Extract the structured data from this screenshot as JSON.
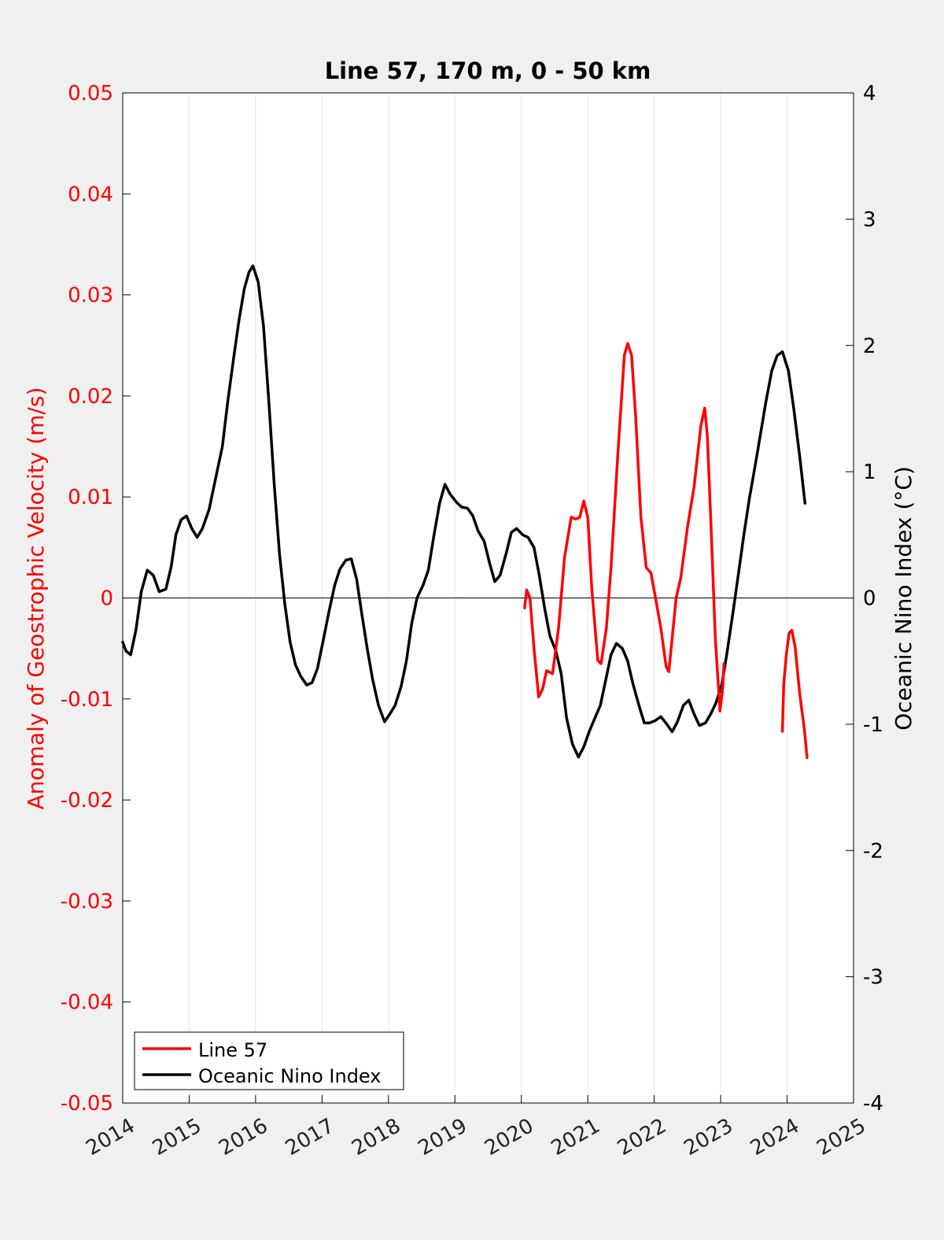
{
  "chart_data": {
    "type": "line",
    "title": "Line 57, 170 m, 0 - 50 km",
    "ylabel_left": "Anomaly of Geostrophic Velocity (m/s)",
    "ylabel_right": "Oceanic Nino Index (°C)",
    "xlabel": "",
    "xlim": [
      2014,
      2025
    ],
    "ylim_left": [
      -0.05,
      0.05
    ],
    "ylim_right": [
      -4,
      4
    ],
    "x_ticks": [
      "2014",
      "2015",
      "2016",
      "2017",
      "2018",
      "2019",
      "2020",
      "2021",
      "2022",
      "2023",
      "2024",
      "2025"
    ],
    "y_ticks_left": [
      "0.05",
      "0.04",
      "0.03",
      "0.02",
      "0.01",
      "0",
      "-0.01",
      "-0.02",
      "-0.03",
      "-0.04",
      "-0.05"
    ],
    "y_ticks_right": [
      "4",
      "3",
      "2",
      "1",
      "0",
      "-1",
      "-2",
      "-3",
      "-4"
    ],
    "vertical_grid": true,
    "zero_line": true,
    "legend_position": "bottom-left",
    "colors": {
      "line57": "#ff0000",
      "oni": "#000000",
      "left_axis": "#ff0000",
      "right_axis": "#000000"
    },
    "series": [
      {
        "name": "Line 57",
        "axis": "left",
        "color": "#ff0000",
        "segments": [
          [
            [
              2020.05,
              -0.001
            ],
            [
              2020.08,
              0.0008
            ],
            [
              2020.13,
              0.0
            ],
            [
              2020.19,
              -0.005
            ],
            [
              2020.26,
              -0.0098
            ],
            [
              2020.32,
              -0.009
            ],
            [
              2020.38,
              -0.0072
            ],
            [
              2020.47,
              -0.0075
            ],
            [
              2020.56,
              -0.003
            ],
            [
              2020.65,
              0.004
            ],
            [
              2020.75,
              0.008
            ],
            [
              2020.82,
              0.0078
            ],
            [
              2020.88,
              0.008
            ],
            [
              2020.94,
              0.0096
            ],
            [
              2021.0,
              0.008
            ],
            [
              2021.06,
              0.001
            ],
            [
              2021.15,
              -0.0062
            ],
            [
              2021.2,
              -0.0065
            ],
            [
              2021.28,
              -0.003
            ],
            [
              2021.35,
              0.003
            ],
            [
              2021.45,
              0.014
            ],
            [
              2021.55,
              0.024
            ],
            [
              2021.6,
              0.0252
            ],
            [
              2021.66,
              0.024
            ],
            [
              2021.72,
              0.018
            ],
            [
              2021.8,
              0.008
            ],
            [
              2021.88,
              0.003
            ],
            [
              2021.95,
              0.0025
            ],
            [
              2022.02,
              0.0
            ],
            [
              2022.1,
              -0.003
            ],
            [
              2022.18,
              -0.0068
            ],
            [
              2022.22,
              -0.0073
            ],
            [
              2022.27,
              -0.004
            ],
            [
              2022.33,
              0.0
            ],
            [
              2022.4,
              0.002
            ],
            [
              2022.5,
              0.007
            ],
            [
              2022.6,
              0.011
            ],
            [
              2022.7,
              0.017
            ],
            [
              2022.76,
              0.0188
            ],
            [
              2022.8,
              0.016
            ],
            [
              2022.85,
              0.008
            ],
            [
              2022.92,
              -0.004
            ],
            [
              2022.99,
              -0.0112
            ],
            [
              2023.03,
              -0.009
            ],
            [
              2023.05,
              -0.0065
            ]
          ],
          [
            [
              2023.93,
              -0.0132
            ],
            [
              2023.95,
              -0.0085
            ],
            [
              2023.99,
              -0.0055
            ],
            [
              2024.03,
              -0.0035
            ],
            [
              2024.07,
              -0.0032
            ],
            [
              2024.12,
              -0.0048
            ],
            [
              2024.19,
              -0.0095
            ],
            [
              2024.26,
              -0.013
            ],
            [
              2024.3,
              -0.0158
            ]
          ]
        ]
      },
      {
        "name": "Oceanic Nino Index",
        "axis": "right",
        "color": "#000000",
        "segments": [
          [
            [
              2014.0,
              -0.35
            ],
            [
              2014.05,
              -0.42
            ],
            [
              2014.12,
              -0.45
            ],
            [
              2014.2,
              -0.25
            ],
            [
              2014.28,
              0.05
            ],
            [
              2014.37,
              0.22
            ],
            [
              2014.46,
              0.18
            ],
            [
              2014.55,
              0.05
            ],
            [
              2014.65,
              0.07
            ],
            [
              2014.73,
              0.25
            ],
            [
              2014.8,
              0.5
            ],
            [
              2014.88,
              0.62
            ],
            [
              2014.96,
              0.65
            ],
            [
              2015.04,
              0.55
            ],
            [
              2015.12,
              0.48
            ],
            [
              2015.2,
              0.55
            ],
            [
              2015.3,
              0.7
            ],
            [
              2015.4,
              0.95
            ],
            [
              2015.5,
              1.2
            ],
            [
              2015.58,
              1.55
            ],
            [
              2015.67,
              1.9
            ],
            [
              2015.75,
              2.2
            ],
            [
              2015.83,
              2.45
            ],
            [
              2015.9,
              2.58
            ],
            [
              2015.96,
              2.63
            ],
            [
              2016.04,
              2.5
            ],
            [
              2016.12,
              2.15
            ],
            [
              2016.2,
              1.55
            ],
            [
              2016.28,
              0.9
            ],
            [
              2016.36,
              0.35
            ],
            [
              2016.44,
              -0.05
            ],
            [
              2016.52,
              -0.35
            ],
            [
              2016.6,
              -0.53
            ],
            [
              2016.68,
              -0.62
            ],
            [
              2016.77,
              -0.69
            ],
            [
              2016.85,
              -0.67
            ],
            [
              2016.93,
              -0.56
            ],
            [
              2017.02,
              -0.33
            ],
            [
              2017.1,
              -0.12
            ],
            [
              2017.19,
              0.1
            ],
            [
              2017.27,
              0.23
            ],
            [
              2017.36,
              0.3
            ],
            [
              2017.44,
              0.31
            ],
            [
              2017.52,
              0.15
            ],
            [
              2017.6,
              -0.13
            ],
            [
              2017.68,
              -0.4
            ],
            [
              2017.76,
              -0.64
            ],
            [
              2017.85,
              -0.85
            ],
            [
              2017.94,
              -0.98
            ],
            [
              2018.02,
              -0.92
            ],
            [
              2018.1,
              -0.85
            ],
            [
              2018.19,
              -0.7
            ],
            [
              2018.27,
              -0.5
            ],
            [
              2018.35,
              -0.2
            ],
            [
              2018.43,
              0.0
            ],
            [
              2018.52,
              0.1
            ],
            [
              2018.6,
              0.22
            ],
            [
              2018.68,
              0.48
            ],
            [
              2018.77,
              0.75
            ],
            [
              2018.85,
              0.9
            ],
            [
              2018.93,
              0.82
            ],
            [
              2019.02,
              0.76
            ],
            [
              2019.1,
              0.72
            ],
            [
              2019.19,
              0.71
            ],
            [
              2019.27,
              0.65
            ],
            [
              2019.35,
              0.53
            ],
            [
              2019.44,
              0.45
            ],
            [
              2019.52,
              0.28
            ],
            [
              2019.6,
              0.13
            ],
            [
              2019.68,
              0.18
            ],
            [
              2019.77,
              0.35
            ],
            [
              2019.85,
              0.52
            ],
            [
              2019.93,
              0.55
            ],
            [
              2020.02,
              0.5
            ],
            [
              2020.1,
              0.48
            ],
            [
              2020.19,
              0.4
            ],
            [
              2020.27,
              0.18
            ],
            [
              2020.35,
              -0.08
            ],
            [
              2020.43,
              -0.3
            ],
            [
              2020.52,
              -0.42
            ],
            [
              2020.6,
              -0.6
            ],
            [
              2020.68,
              -0.95
            ],
            [
              2020.77,
              -1.16
            ],
            [
              2020.86,
              -1.26
            ],
            [
              2020.94,
              -1.18
            ],
            [
              2021.02,
              -1.06
            ],
            [
              2021.1,
              -0.96
            ],
            [
              2021.19,
              -0.85
            ],
            [
              2021.27,
              -0.65
            ],
            [
              2021.35,
              -0.45
            ],
            [
              2021.43,
              -0.36
            ],
            [
              2021.52,
              -0.4
            ],
            [
              2021.6,
              -0.5
            ],
            [
              2021.68,
              -0.68
            ],
            [
              2021.77,
              -0.85
            ],
            [
              2021.85,
              -0.99
            ],
            [
              2021.93,
              -0.99
            ],
            [
              2022.02,
              -0.97
            ],
            [
              2022.1,
              -0.94
            ],
            [
              2022.19,
              -1.0
            ],
            [
              2022.27,
              -1.06
            ],
            [
              2022.35,
              -0.98
            ],
            [
              2022.44,
              -0.85
            ],
            [
              2022.52,
              -0.81
            ],
            [
              2022.6,
              -0.92
            ],
            [
              2022.68,
              -1.01
            ],
            [
              2022.77,
              -0.99
            ],
            [
              2022.85,
              -0.92
            ],
            [
              2022.93,
              -0.83
            ],
            [
              2023.02,
              -0.68
            ],
            [
              2023.1,
              -0.42
            ],
            [
              2023.19,
              -0.1
            ],
            [
              2023.27,
              0.2
            ],
            [
              2023.35,
              0.5
            ],
            [
              2023.43,
              0.78
            ],
            [
              2023.52,
              1.05
            ],
            [
              2023.6,
              1.3
            ],
            [
              2023.68,
              1.55
            ],
            [
              2023.77,
              1.8
            ],
            [
              2023.85,
              1.92
            ],
            [
              2023.93,
              1.95
            ],
            [
              2024.02,
              1.8
            ],
            [
              2024.1,
              1.5
            ],
            [
              2024.19,
              1.12
            ],
            [
              2024.27,
              0.75
            ]
          ]
        ]
      }
    ]
  }
}
